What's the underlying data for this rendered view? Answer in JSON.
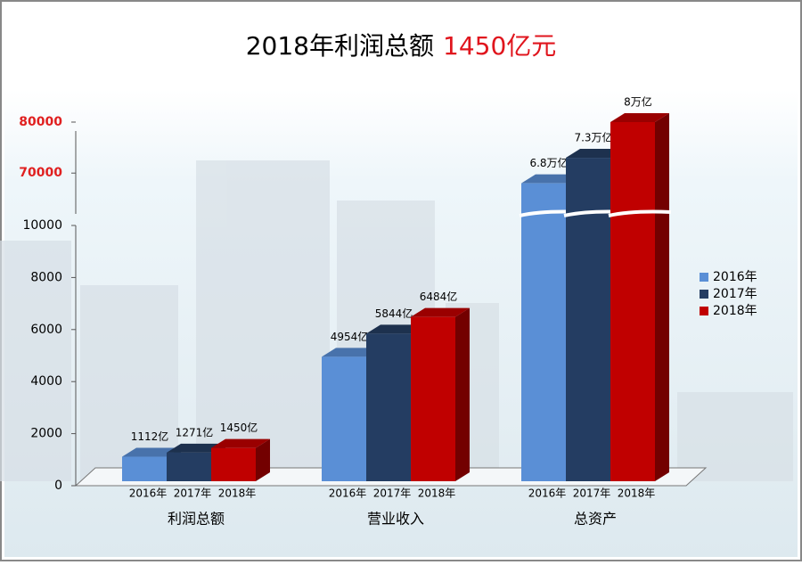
{
  "chart_data": {
    "type": "bar",
    "title": "2018年利润总额",
    "title_highlight": "1450亿元",
    "categories": [
      "利润总额",
      "营业收入",
      "总资产"
    ],
    "series": [
      {
        "name": "2016年",
        "color": "#5a8fd6",
        "values": [
          1112,
          4954,
          68000
        ],
        "value_labels": [
          "1112亿",
          "4954亿",
          "6.8万亿"
        ]
      },
      {
        "name": "2017年",
        "color": "#243d62",
        "values": [
          1271,
          5844,
          73000
        ],
        "value_labels": [
          "1271亿",
          "5844亿",
          "7.3万亿"
        ]
      },
      {
        "name": "2018年",
        "color": "#c00000",
        "values": [
          1450,
          6484,
          80000
        ],
        "value_labels": [
          "1450亿",
          "6484亿",
          "8万亿"
        ]
      }
    ],
    "y_segments": [
      {
        "ylim": [
          0,
          10000
        ],
        "yticks": [
          0,
          2000,
          4000,
          6000,
          8000,
          10000
        ],
        "color": "#000000"
      },
      {
        "ylim": [
          62000,
          80000
        ],
        "yticks": [
          70000,
          80000
        ],
        "color": "#e02020"
      }
    ],
    "grid": false,
    "legend": "right"
  }
}
